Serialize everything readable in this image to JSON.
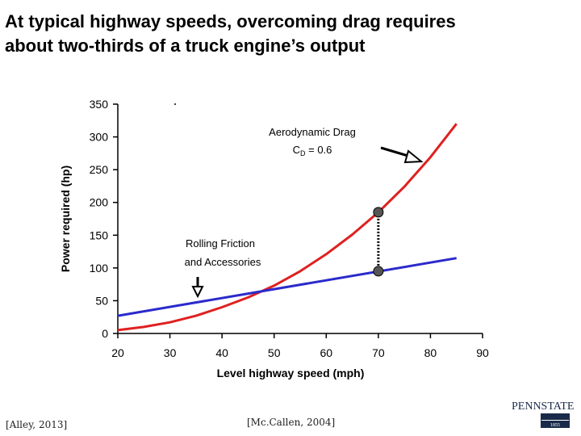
{
  "slide": {
    "title_line1": "At typical highway speeds, overcoming drag requires",
    "title_line2": "about two-thirds of a truck engine’s output",
    "citation_left": "[Alley, 2013]",
    "citation_mid": "[Mc.Callen, 2004]",
    "logo_text": "PENNSTATE",
    "logo_year": "1855"
  },
  "chart_data": {
    "type": "line",
    "xlabel": "Level highway speed (mph)",
    "ylabel": "Power required (hp)",
    "xlim": [
      20,
      90
    ],
    "ylim": [
      0,
      350
    ],
    "xticks": [
      20,
      30,
      40,
      50,
      60,
      70,
      80,
      90
    ],
    "yticks": [
      0,
      50,
      100,
      150,
      200,
      250,
      300,
      350
    ],
    "grid": false,
    "series": [
      {
        "name": "Aerodynamic Drag",
        "color": "#e02020",
        "x": [
          20,
          25,
          30,
          35,
          40,
          45,
          50,
          55,
          60,
          65,
          70,
          75,
          80,
          85
        ],
        "y": [
          5,
          10,
          17,
          27,
          40,
          55,
          73,
          95,
          121,
          151,
          185,
          224,
          269,
          320
        ]
      },
      {
        "name": "Rolling Friction and Accessories",
        "color": "#2a2acc",
        "x": [
          20,
          85
        ],
        "y": [
          27,
          115
        ]
      }
    ],
    "annotations": {
      "aero_label": "Aerodynamic Drag",
      "cd_label_main": "C",
      "cd_label_sub": "D",
      "cd_label_value": " = 0.6",
      "rolling_label_line1": "Rolling Friction",
      "rolling_label_line2": "and Accessories",
      "marker_speed": 70,
      "marker_top": 185,
      "marker_bottom": 95
    }
  }
}
